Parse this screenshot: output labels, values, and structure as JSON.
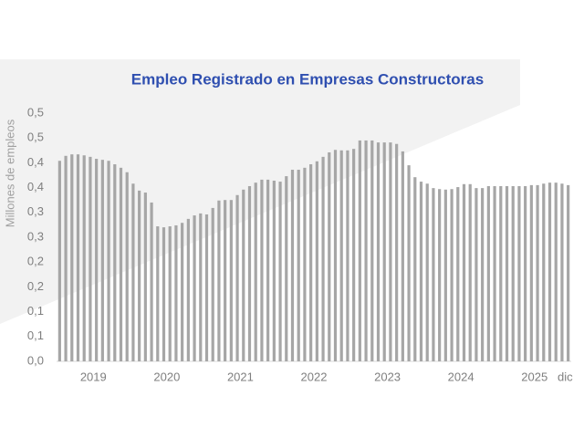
{
  "chart_data": {
    "type": "bar",
    "title": "Empleo Registrado en Empresas Constructoras",
    "ylabel": "Millones de empleos",
    "color": "#a6a6a6",
    "categories": [
      null,
      null,
      null,
      null,
      null,
      null,
      "2019",
      null,
      null,
      null,
      null,
      null,
      null,
      null,
      null,
      null,
      null,
      null,
      "2020",
      null,
      null,
      null,
      null,
      null,
      null,
      null,
      null,
      null,
      null,
      null,
      "2021",
      null,
      null,
      null,
      null,
      null,
      null,
      null,
      null,
      null,
      null,
      null,
      "2022",
      null,
      null,
      null,
      null,
      null,
      null,
      null,
      null,
      null,
      null,
      null,
      "2023",
      null,
      null,
      null,
      null,
      null,
      null,
      null,
      null,
      null,
      null,
      null,
      "2024",
      null,
      null,
      null,
      null,
      null,
      null,
      null,
      null,
      null,
      null,
      null,
      "2025",
      null,
      null,
      null,
      null,
      "dic"
    ],
    "values": [
      0.404,
      0.414,
      0.417,
      0.417,
      0.415,
      0.412,
      0.408,
      0.406,
      0.404,
      0.397,
      0.39,
      0.381,
      0.358,
      0.344,
      0.34,
      0.32,
      0.272,
      0.27,
      0.272,
      0.274,
      0.279,
      0.287,
      0.294,
      0.298,
      0.296,
      0.309,
      0.324,
      0.325,
      0.325,
      0.335,
      0.346,
      0.353,
      0.36,
      0.366,
      0.366,
      0.364,
      0.362,
      0.373,
      0.386,
      0.386,
      0.39,
      0.397,
      0.403,
      0.412,
      0.421,
      0.426,
      0.425,
      0.425,
      0.428,
      0.445,
      0.445,
      0.445,
      0.441,
      0.441,
      0.441,
      0.438,
      0.423,
      0.395,
      0.371,
      0.362,
      0.358,
      0.349,
      0.347,
      0.346,
      0.347,
      0.351,
      0.357,
      0.357,
      0.349,
      0.349,
      0.353,
      0.353,
      0.353,
      0.353,
      0.353,
      0.353,
      0.353,
      0.355,
      0.355,
      0.358,
      0.36,
      0.36,
      0.358,
      0.355
    ],
    "ylim": [
      0,
      0.5
    ],
    "yticks": [
      {
        "value": 0,
        "label": "0,0"
      },
      {
        "value": 0.05,
        "label": "0,1"
      },
      {
        "value": 0.1,
        "label": "0,1"
      },
      {
        "value": 0.15,
        "label": "0,2"
      },
      {
        "value": 0.2,
        "label": "0,2"
      },
      {
        "value": 0.25,
        "label": "0,3"
      },
      {
        "value": 0.3,
        "label": "0,3"
      },
      {
        "value": 0.35,
        "label": "0,4"
      },
      {
        "value": 0.4,
        "label": "0,4"
      },
      {
        "value": 0.45,
        "label": "0,5"
      },
      {
        "value": 0.5,
        "label": "0,5"
      }
    ],
    "grid": false
  }
}
